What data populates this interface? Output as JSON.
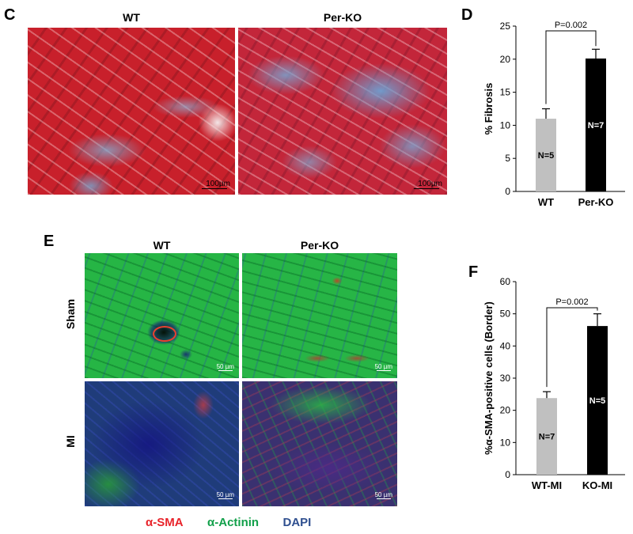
{
  "panels": {
    "c": {
      "label": "C",
      "columns": [
        "WT",
        "Per-KO"
      ],
      "scale_labels": [
        "100µm",
        "100µm"
      ]
    },
    "d": {
      "label": "D"
    },
    "e": {
      "label": "E",
      "columns": [
        "WT",
        "Per-KO"
      ],
      "rows": [
        "Sham",
        "MI"
      ],
      "scale_labels": [
        "50 µm",
        "50 µm",
        "50 µm",
        "50 µm"
      ],
      "legend": [
        {
          "text": "α-SMA",
          "color": "#e8232a"
        },
        {
          "text": "α-Actinin",
          "color": "#12a04a"
        },
        {
          "text": "DAPI",
          "color": "#2f4f8f"
        }
      ]
    },
    "f": {
      "label": "F"
    }
  },
  "chart_data": [
    {
      "type": "bar",
      "categories": [
        "WT",
        "Per-KO"
      ],
      "values": [
        11.0,
        20.1
      ],
      "errors": [
        1.5,
        1.4
      ],
      "bar_colors": [
        "#c0c0c0",
        "#000000"
      ],
      "bar_labels": [
        "N=5",
        "N=7"
      ],
      "ylabel": "% Fibrosis",
      "ylim": [
        0,
        25
      ],
      "yticks": [
        0,
        5,
        10,
        15,
        20,
        25
      ],
      "annotation": "P=0.002"
    },
    {
      "type": "bar",
      "categories": [
        "WT-MI",
        "KO-MI"
      ],
      "values": [
        23.8,
        46.2
      ],
      "errors": [
        2.0,
        3.8
      ],
      "bar_colors": [
        "#c0c0c0",
        "#000000"
      ],
      "bar_labels": [
        "N=7",
        "N=5"
      ],
      "ylabel": "%α-SMA-positive cells (Border)",
      "ylim": [
        0,
        60
      ],
      "yticks": [
        0,
        10,
        20,
        30,
        40,
        50,
        60
      ],
      "annotation": "P=0.002"
    }
  ]
}
